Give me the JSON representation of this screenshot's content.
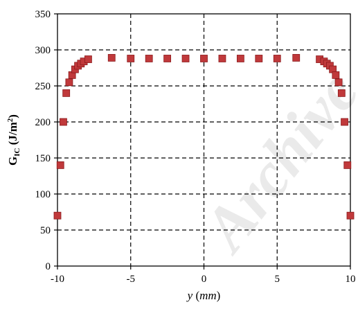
{
  "watermark": "Archive",
  "chart_data": {
    "type": "scatter",
    "title": "",
    "xlabel": "y (mm)",
    "xlabel_main": "y",
    "xlabel_unit": "mm",
    "ylabel": "G_IC (J/m²)",
    "ylabel_main": "G",
    "ylabel_sub": "IC",
    "ylabel_unit_open": " (J/m",
    "ylabel_unit_sup": "2",
    "ylabel_unit_close": ")",
    "xlim": [
      -10,
      10
    ],
    "ylim": [
      0,
      350
    ],
    "xticks": [
      -10,
      -5,
      0,
      5,
      10
    ],
    "yticks": [
      0,
      50,
      100,
      150,
      200,
      250,
      300,
      350
    ],
    "grid": "dashed",
    "legend": "none",
    "marker_color": "#c0393b",
    "marker_edge": "#8b1a1c",
    "series": [
      {
        "points": [
          [
            -10.0,
            70
          ],
          [
            -9.8,
            140
          ],
          [
            -9.6,
            200
          ],
          [
            -9.4,
            240
          ],
          [
            -9.2,
            255
          ],
          [
            -9.0,
            265
          ],
          [
            -8.8,
            273
          ],
          [
            -8.6,
            278
          ],
          [
            -8.4,
            281
          ],
          [
            -8.2,
            284
          ],
          [
            -7.9,
            287
          ],
          [
            -6.3,
            289
          ],
          [
            -5.0,
            288
          ],
          [
            -3.75,
            288
          ],
          [
            -2.5,
            288
          ],
          [
            -1.25,
            288
          ],
          [
            0.0,
            288
          ],
          [
            1.25,
            288
          ],
          [
            2.5,
            288
          ],
          [
            3.75,
            288
          ],
          [
            5.0,
            288
          ],
          [
            6.3,
            289
          ],
          [
            7.9,
            287
          ],
          [
            8.2,
            284
          ],
          [
            8.4,
            281
          ],
          [
            8.6,
            278
          ],
          [
            8.8,
            273
          ],
          [
            9.0,
            265
          ],
          [
            9.2,
            255
          ],
          [
            9.4,
            240
          ],
          [
            9.6,
            200
          ],
          [
            9.8,
            140
          ],
          [
            10.0,
            70
          ]
        ]
      }
    ]
  }
}
